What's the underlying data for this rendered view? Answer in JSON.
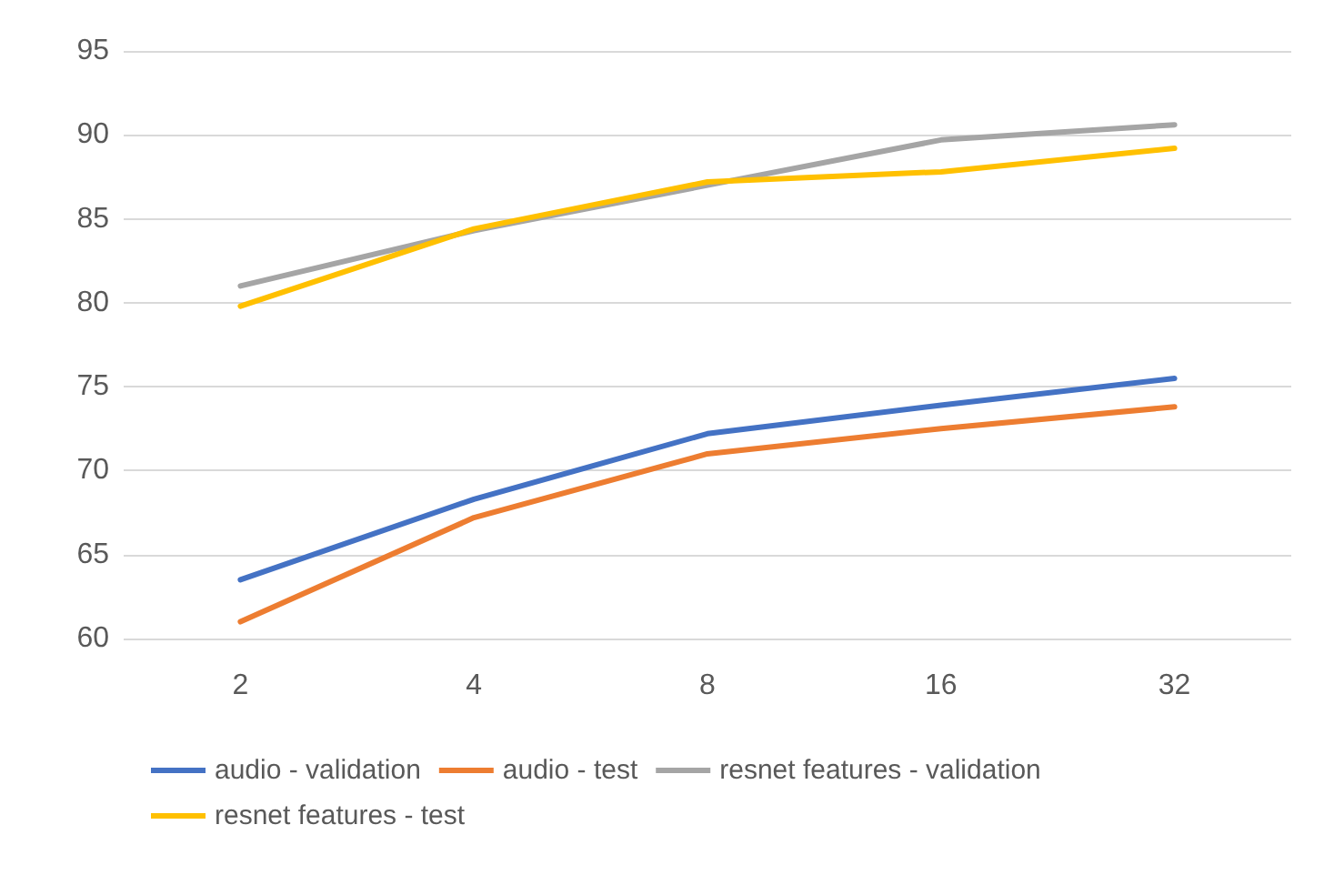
{
  "chart_data": {
    "type": "line",
    "categories": [
      "2",
      "4",
      "8",
      "16",
      "32"
    ],
    "series": [
      {
        "name": "audio - validation",
        "color": "#4472c4",
        "values": [
          63.5,
          68.3,
          72.2,
          73.9,
          75.5
        ]
      },
      {
        "name": "audio - test",
        "color": "#ed7d31",
        "values": [
          61.0,
          67.2,
          71.0,
          72.5,
          73.8
        ]
      },
      {
        "name": "resnet features - validation",
        "color": "#a5a5a5",
        "values": [
          81.0,
          84.3,
          87.0,
          89.7,
          90.6
        ]
      },
      {
        "name": "resnet features - test",
        "color": "#ffc000",
        "values": [
          79.8,
          84.4,
          87.2,
          87.8,
          89.2
        ]
      }
    ],
    "ylim": [
      60,
      95
    ],
    "yticks": [
      60,
      65,
      70,
      75,
      80,
      85,
      90,
      95
    ],
    "grid": "y",
    "legend": "bottom",
    "marker": "none",
    "line_style": "solid"
  }
}
